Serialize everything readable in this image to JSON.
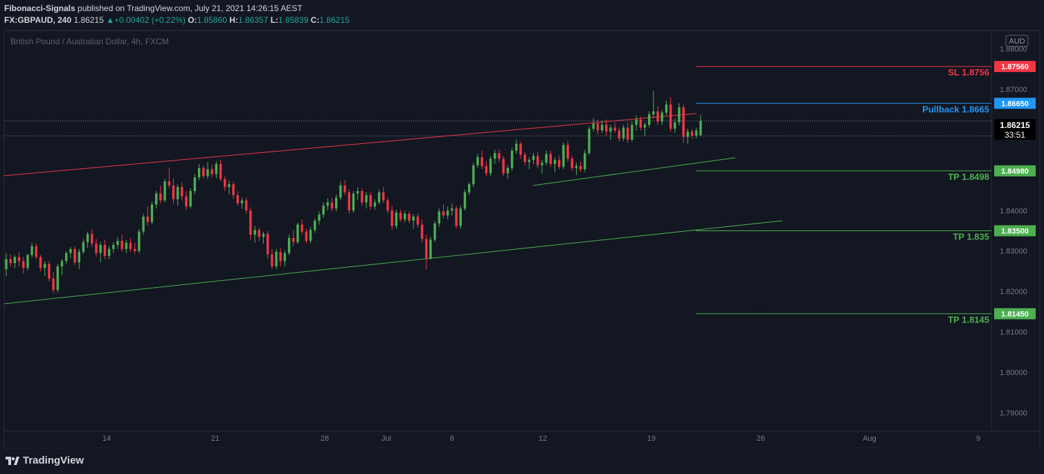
{
  "header": {
    "publisher": "Fibonacci-Signals",
    "published_text": "published on TradingView.com, July 21, 2021 14:26:15 AEST",
    "symbol": "FX:GBPAUD, 240",
    "last": "1.86215",
    "change_arrow": "▲",
    "change": "+0.00402 (+0.22%)",
    "o_label": "O:",
    "o_value": "1.85860",
    "h_label": "H:",
    "h_value": "1.86357",
    "l_label": "L:",
    "l_value": "1.85839",
    "c_label": "C:",
    "c_value": "1.86215"
  },
  "footer": {
    "brand": "TradingView"
  },
  "chart_data": {
    "type": "candlestick",
    "title": "British Pound / Australian Dollar, 4h, FXCM",
    "currency_badge": "AUD",
    "ylim": [
      1.7855,
      1.8845
    ],
    "y_ticks": [
      "1.88000",
      "1.87000",
      "1.86000",
      "1.85000",
      "1.84000",
      "1.83000",
      "1.82000",
      "1.81000",
      "1.80000",
      "1.79000"
    ],
    "x_ticks": [
      "14",
      "21",
      "28",
      "Jul",
      "6",
      "12",
      "19",
      "26",
      "Aug",
      "9"
    ],
    "current_price": "1.86215",
    "countdown": "33:51",
    "levels": [
      {
        "name": "sl",
        "label": "SL 1.8756",
        "tag": "1.87560",
        "value": 1.8756,
        "color": "#f23645"
      },
      {
        "name": "pullback",
        "label": "Pullback 1.8665",
        "tag": "1.86650",
        "value": 1.8665,
        "color": "#2196f3"
      },
      {
        "name": "tp1",
        "label": "TP 1.8498",
        "tag": "1.84980",
        "value": 1.8498,
        "color": "#4caf50"
      },
      {
        "name": "tp2",
        "label": "TP 1.835",
        "tag": "1.83500",
        "value": 1.835,
        "color": "#4caf50"
      },
      {
        "name": "tp3",
        "label": "TP 1.8145",
        "tag": "1.81450",
        "value": 1.8145,
        "color": "#4caf50"
      }
    ],
    "candles": [
      [
        1.8255,
        1.8295,
        1.8238,
        1.828
      ],
      [
        1.828,
        1.8292,
        1.8262,
        1.827
      ],
      [
        1.827,
        1.829,
        1.8258,
        1.8285
      ],
      [
        1.8285,
        1.8298,
        1.8262,
        1.8275
      ],
      [
        1.8275,
        1.8285,
        1.8244,
        1.8258
      ],
      [
        1.8258,
        1.8294,
        1.8252,
        1.829
      ],
      [
        1.829,
        1.832,
        1.8284,
        1.8312
      ],
      [
        1.8312,
        1.8318,
        1.828,
        1.8285
      ],
      [
        1.8285,
        1.829,
        1.825,
        1.8258
      ],
      [
        1.8258,
        1.8275,
        1.8238,
        1.8268
      ],
      [
        1.8268,
        1.8274,
        1.8225,
        1.8232
      ],
      [
        1.8232,
        1.8248,
        1.8196,
        1.8204
      ],
      [
        1.8204,
        1.8268,
        1.8198,
        1.8262
      ],
      [
        1.8262,
        1.828,
        1.824,
        1.8275
      ],
      [
        1.8275,
        1.83,
        1.8268,
        1.8295
      ],
      [
        1.8295,
        1.831,
        1.8282,
        1.8305
      ],
      [
        1.8305,
        1.8312,
        1.8265,
        1.8272
      ],
      [
        1.8272,
        1.8305,
        1.8255,
        1.8298
      ],
      [
        1.8298,
        1.833,
        1.8292,
        1.8322
      ],
      [
        1.8322,
        1.8348,
        1.8308,
        1.8342
      ],
      [
        1.8342,
        1.8355,
        1.831,
        1.8318
      ],
      [
        1.8318,
        1.833,
        1.8285,
        1.8295
      ],
      [
        1.8295,
        1.8322,
        1.8272,
        1.8315
      ],
      [
        1.8315,
        1.8328,
        1.828,
        1.8288
      ],
      [
        1.8288,
        1.8312,
        1.828,
        1.8305
      ],
      [
        1.8305,
        1.8322,
        1.8295,
        1.8315
      ],
      [
        1.8315,
        1.8335,
        1.8305,
        1.8325
      ],
      [
        1.8325,
        1.834,
        1.8298,
        1.8305
      ],
      [
        1.8305,
        1.8328,
        1.8295,
        1.832
      ],
      [
        1.832,
        1.8332,
        1.8298,
        1.8305
      ],
      [
        1.8305,
        1.832,
        1.8292,
        1.83
      ],
      [
        1.83,
        1.8355,
        1.8295,
        1.8348
      ],
      [
        1.8348,
        1.8392,
        1.834,
        1.8385
      ],
      [
        1.8385,
        1.841,
        1.8362,
        1.8372
      ],
      [
        1.8372,
        1.8422,
        1.8366,
        1.8415
      ],
      [
        1.8415,
        1.8448,
        1.8405,
        1.8442
      ],
      [
        1.8442,
        1.8462,
        1.8418,
        1.8425
      ],
      [
        1.8425,
        1.8478,
        1.842,
        1.8472
      ],
      [
        1.8472,
        1.8505,
        1.8455,
        1.8462
      ],
      [
        1.8462,
        1.848,
        1.8418,
        1.8428
      ],
      [
        1.8428,
        1.8465,
        1.8412,
        1.8458
      ],
      [
        1.8458,
        1.847,
        1.8425,
        1.8435
      ],
      [
        1.8435,
        1.8448,
        1.8402,
        1.841
      ],
      [
        1.841,
        1.8455,
        1.8405,
        1.8448
      ],
      [
        1.8448,
        1.849,
        1.844,
        1.8482
      ],
      [
        1.8482,
        1.8515,
        1.8475,
        1.8505
      ],
      [
        1.8505,
        1.8512,
        1.8478,
        1.8485
      ],
      [
        1.8485,
        1.852,
        1.8478,
        1.8502
      ],
      [
        1.8502,
        1.8512,
        1.8482,
        1.849
      ],
      [
        1.849,
        1.8522,
        1.848,
        1.8515
      ],
      [
        1.8515,
        1.8525,
        1.8472,
        1.8478
      ],
      [
        1.8478,
        1.8485,
        1.8448,
        1.8458
      ],
      [
        1.8458,
        1.8475,
        1.844,
        1.8465
      ],
      [
        1.8465,
        1.8472,
        1.8428,
        1.8438
      ],
      [
        1.8438,
        1.8448,
        1.8412,
        1.8418
      ],
      [
        1.8418,
        1.8432,
        1.8405,
        1.8425
      ],
      [
        1.8425,
        1.8432,
        1.8392,
        1.84
      ],
      [
        1.84,
        1.8408,
        1.8328,
        1.834
      ],
      [
        1.834,
        1.8362,
        1.832,
        1.8352
      ],
      [
        1.8352,
        1.8358,
        1.8325,
        1.8335
      ],
      [
        1.8335,
        1.8348,
        1.8318,
        1.8342
      ],
      [
        1.8342,
        1.835,
        1.828,
        1.8292
      ],
      [
        1.8292,
        1.8305,
        1.8255,
        1.8262
      ],
      [
        1.8262,
        1.8305,
        1.8255,
        1.8298
      ],
      [
        1.8298,
        1.8308,
        1.8262,
        1.8275
      ],
      [
        1.8275,
        1.8302,
        1.8262,
        1.8295
      ],
      [
        1.8295,
        1.834,
        1.829,
        1.8332
      ],
      [
        1.8332,
        1.8352,
        1.8312,
        1.8322
      ],
      [
        1.8322,
        1.837,
        1.8318,
        1.8365
      ],
      [
        1.8365,
        1.8378,
        1.834,
        1.8348
      ],
      [
        1.8348,
        1.8355,
        1.8318,
        1.8325
      ],
      [
        1.8325,
        1.836,
        1.8318,
        1.8352
      ],
      [
        1.8352,
        1.838,
        1.8345,
        1.8375
      ],
      [
        1.8375,
        1.8398,
        1.8365,
        1.839
      ],
      [
        1.839,
        1.842,
        1.8382,
        1.8412
      ],
      [
        1.8412,
        1.843,
        1.84,
        1.842
      ],
      [
        1.842,
        1.8432,
        1.8398,
        1.8405
      ],
      [
        1.8405,
        1.844,
        1.8398,
        1.8432
      ],
      [
        1.8432,
        1.8472,
        1.8425,
        1.8462
      ],
      [
        1.8462,
        1.8475,
        1.8438,
        1.8445
      ],
      [
        1.8445,
        1.8452,
        1.8392,
        1.84
      ],
      [
        1.84,
        1.8448,
        1.8395,
        1.8442
      ],
      [
        1.8442,
        1.8458,
        1.8425,
        1.8448
      ],
      [
        1.8448,
        1.8455,
        1.8412,
        1.842
      ],
      [
        1.842,
        1.8445,
        1.8405,
        1.8438
      ],
      [
        1.8438,
        1.8445,
        1.8402,
        1.841
      ],
      [
        1.841,
        1.8428,
        1.8402,
        1.842
      ],
      [
        1.842,
        1.8452,
        1.8415,
        1.8445
      ],
      [
        1.8445,
        1.8458,
        1.8418,
        1.8425
      ],
      [
        1.8425,
        1.8432,
        1.8392,
        1.84
      ],
      [
        1.84,
        1.8412,
        1.8352,
        1.8362
      ],
      [
        1.8362,
        1.8402,
        1.8355,
        1.8395
      ],
      [
        1.8395,
        1.8402,
        1.8372,
        1.8378
      ],
      [
        1.8378,
        1.84,
        1.837,
        1.8392
      ],
      [
        1.8392,
        1.8398,
        1.8368,
        1.8375
      ],
      [
        1.8375,
        1.8392,
        1.8355,
        1.8385
      ],
      [
        1.8385,
        1.8392,
        1.8358,
        1.8365
      ],
      [
        1.8365,
        1.8378,
        1.832,
        1.833
      ],
      [
        1.833,
        1.834,
        1.8255,
        1.8282
      ],
      [
        1.8282,
        1.8335,
        1.8278,
        1.8328
      ],
      [
        1.8328,
        1.8375,
        1.8322,
        1.8368
      ],
      [
        1.8368,
        1.8405,
        1.836,
        1.8398
      ],
      [
        1.8398,
        1.8415,
        1.838,
        1.8388
      ],
      [
        1.8388,
        1.841,
        1.8378,
        1.84
      ],
      [
        1.84,
        1.8418,
        1.8388,
        1.8405
      ],
      [
        1.8405,
        1.8412,
        1.8355,
        1.8362
      ],
      [
        1.8362,
        1.8412,
        1.8355,
        1.8405
      ],
      [
        1.8405,
        1.8452,
        1.84,
        1.8445
      ],
      [
        1.8445,
        1.847,
        1.8438,
        1.8465
      ],
      [
        1.8465,
        1.8518,
        1.8458,
        1.8512
      ],
      [
        1.8512,
        1.854,
        1.8505,
        1.8532
      ],
      [
        1.8532,
        1.8548,
        1.8502,
        1.851
      ],
      [
        1.851,
        1.8522,
        1.8485,
        1.8492
      ],
      [
        1.8492,
        1.8535,
        1.8485,
        1.8528
      ],
      [
        1.8528,
        1.855,
        1.8515,
        1.8542
      ],
      [
        1.8542,
        1.8552,
        1.852,
        1.8528
      ],
      [
        1.8528,
        1.8535,
        1.8485,
        1.8492
      ],
      [
        1.8492,
        1.8512,
        1.8478,
        1.8505
      ],
      [
        1.8505,
        1.8555,
        1.8498,
        1.8548
      ],
      [
        1.8548,
        1.8575,
        1.854,
        1.8565
      ],
      [
        1.8565,
        1.857,
        1.8528,
        1.8538
      ],
      [
        1.8538,
        1.8545,
        1.8512,
        1.852
      ],
      [
        1.852,
        1.8532,
        1.8502,
        1.8525
      ],
      [
        1.8525,
        1.8542,
        1.8515,
        1.8535
      ],
      [
        1.8535,
        1.8545,
        1.8505,
        1.8512
      ],
      [
        1.8512,
        1.8525,
        1.8492,
        1.8518
      ],
      [
        1.8518,
        1.8548,
        1.8512,
        1.854
      ],
      [
        1.854,
        1.8548,
        1.8508,
        1.8515
      ],
      [
        1.8515,
        1.8532,
        1.8495,
        1.8525
      ],
      [
        1.8525,
        1.8535,
        1.8502,
        1.8508
      ],
      [
        1.8508,
        1.8568,
        1.8502,
        1.8562
      ],
      [
        1.8562,
        1.8572,
        1.852,
        1.8528
      ],
      [
        1.8528,
        1.8535,
        1.8498,
        1.8505
      ],
      [
        1.8505,
        1.8518,
        1.8488,
        1.851
      ],
      [
        1.851,
        1.8522,
        1.8495,
        1.8502
      ],
      [
        1.8502,
        1.855,
        1.8495,
        1.8542
      ],
      [
        1.8542,
        1.8608,
        1.8538,
        1.8602
      ],
      [
        1.8602,
        1.8628,
        1.8595,
        1.8615
      ],
      [
        1.8615,
        1.8625,
        1.8588,
        1.8598
      ],
      [
        1.8598,
        1.8622,
        1.8592,
        1.8612
      ],
      [
        1.8612,
        1.8625,
        1.8585,
        1.8595
      ],
      [
        1.8595,
        1.8612,
        1.8575,
        1.8605
      ],
      [
        1.8605,
        1.8618,
        1.8592,
        1.8598
      ],
      [
        1.8598,
        1.8605,
        1.857,
        1.8578
      ],
      [
        1.8578,
        1.8612,
        1.8572,
        1.8605
      ],
      [
        1.8605,
        1.8618,
        1.8568,
        1.8575
      ],
      [
        1.8575,
        1.862,
        1.857,
        1.8612
      ],
      [
        1.8612,
        1.8635,
        1.8598,
        1.8625
      ],
      [
        1.8625,
        1.8632,
        1.8598,
        1.8605
      ],
      [
        1.8605,
        1.8618,
        1.8585,
        1.8612
      ],
      [
        1.8612,
        1.8645,
        1.8605,
        1.8638
      ],
      [
        1.8638,
        1.8695,
        1.8628,
        1.8645
      ],
      [
        1.8645,
        1.8658,
        1.8612,
        1.862
      ],
      [
        1.862,
        1.8648,
        1.8612,
        1.8642
      ],
      [
        1.8642,
        1.8672,
        1.8635,
        1.8662
      ],
      [
        1.8662,
        1.868,
        1.8595,
        1.8602
      ],
      [
        1.8602,
        1.8628,
        1.8592,
        1.8618
      ],
      [
        1.8618,
        1.8665,
        1.861,
        1.8655
      ],
      [
        1.8655,
        1.8662,
        1.8568,
        1.8582
      ],
      [
        1.8582,
        1.8602,
        1.8565,
        1.8595
      ],
      [
        1.8595,
        1.8602,
        1.8578,
        1.8585
      ],
      [
        1.8585,
        1.8605,
        1.8578,
        1.8598
      ],
      [
        1.8586,
        1.8636,
        1.8584,
        1.8622
      ]
    ]
  }
}
